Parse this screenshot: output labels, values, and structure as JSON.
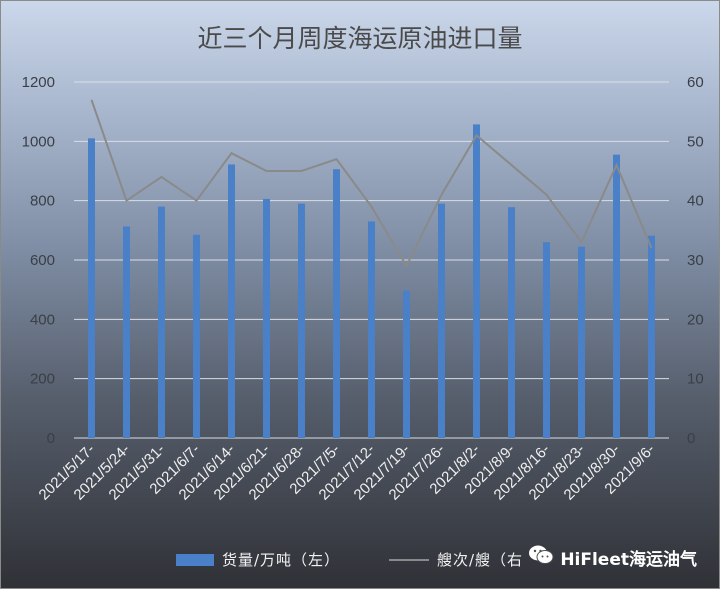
{
  "chart_data": {
    "type": "bar+line",
    "title": "近三个月周度海运原油进口量",
    "categories": [
      "2021/5/17-",
      "2021/5/24-",
      "2021/5/31-",
      "2021/6/7-",
      "2021/6/14-",
      "2021/6/21-",
      "2021/6/28-",
      "2021/7/5-",
      "2021/7/12-",
      "2021/7/19-",
      "2021/7/26-",
      "2021/8/2-",
      "2021/8/9-",
      "2021/8/16-",
      "2021/8/23-",
      "2021/8/30-",
      "2021/9/6-"
    ],
    "series": [
      {
        "name": "货量/万吨（左）",
        "type": "bar",
        "axis": "left",
        "color": "#4a80c8",
        "values": [
          1010,
          713,
          780,
          685,
          922,
          806,
          790,
          906,
          730,
          497,
          790,
          1057,
          778,
          660,
          645,
          955,
          682
        ]
      },
      {
        "name": "艘次/艘（右",
        "type": "line",
        "axis": "right",
        "color": "#8a8a8a",
        "values": [
          57,
          40,
          44,
          40,
          48,
          45,
          45,
          47,
          39,
          29,
          41,
          51,
          46,
          41,
          33,
          46,
          32
        ]
      }
    ],
    "y_left": {
      "ticks": [
        "0",
        "200",
        "400",
        "600",
        "800",
        "1000",
        "1200"
      ],
      "min": 0,
      "max": 1200
    },
    "y_right": {
      "ticks": [
        "0",
        "10",
        "20",
        "30",
        "40",
        "50",
        "60"
      ],
      "min": 0,
      "max": 60
    },
    "grid": true,
    "legend_position": "bottom"
  },
  "legend": {
    "bar_label": "货量/万吨（左）",
    "line_label": "艘次/艘（右"
  },
  "watermark": {
    "text": "HiFleet海运油气",
    "icon": "wechat-icon"
  }
}
